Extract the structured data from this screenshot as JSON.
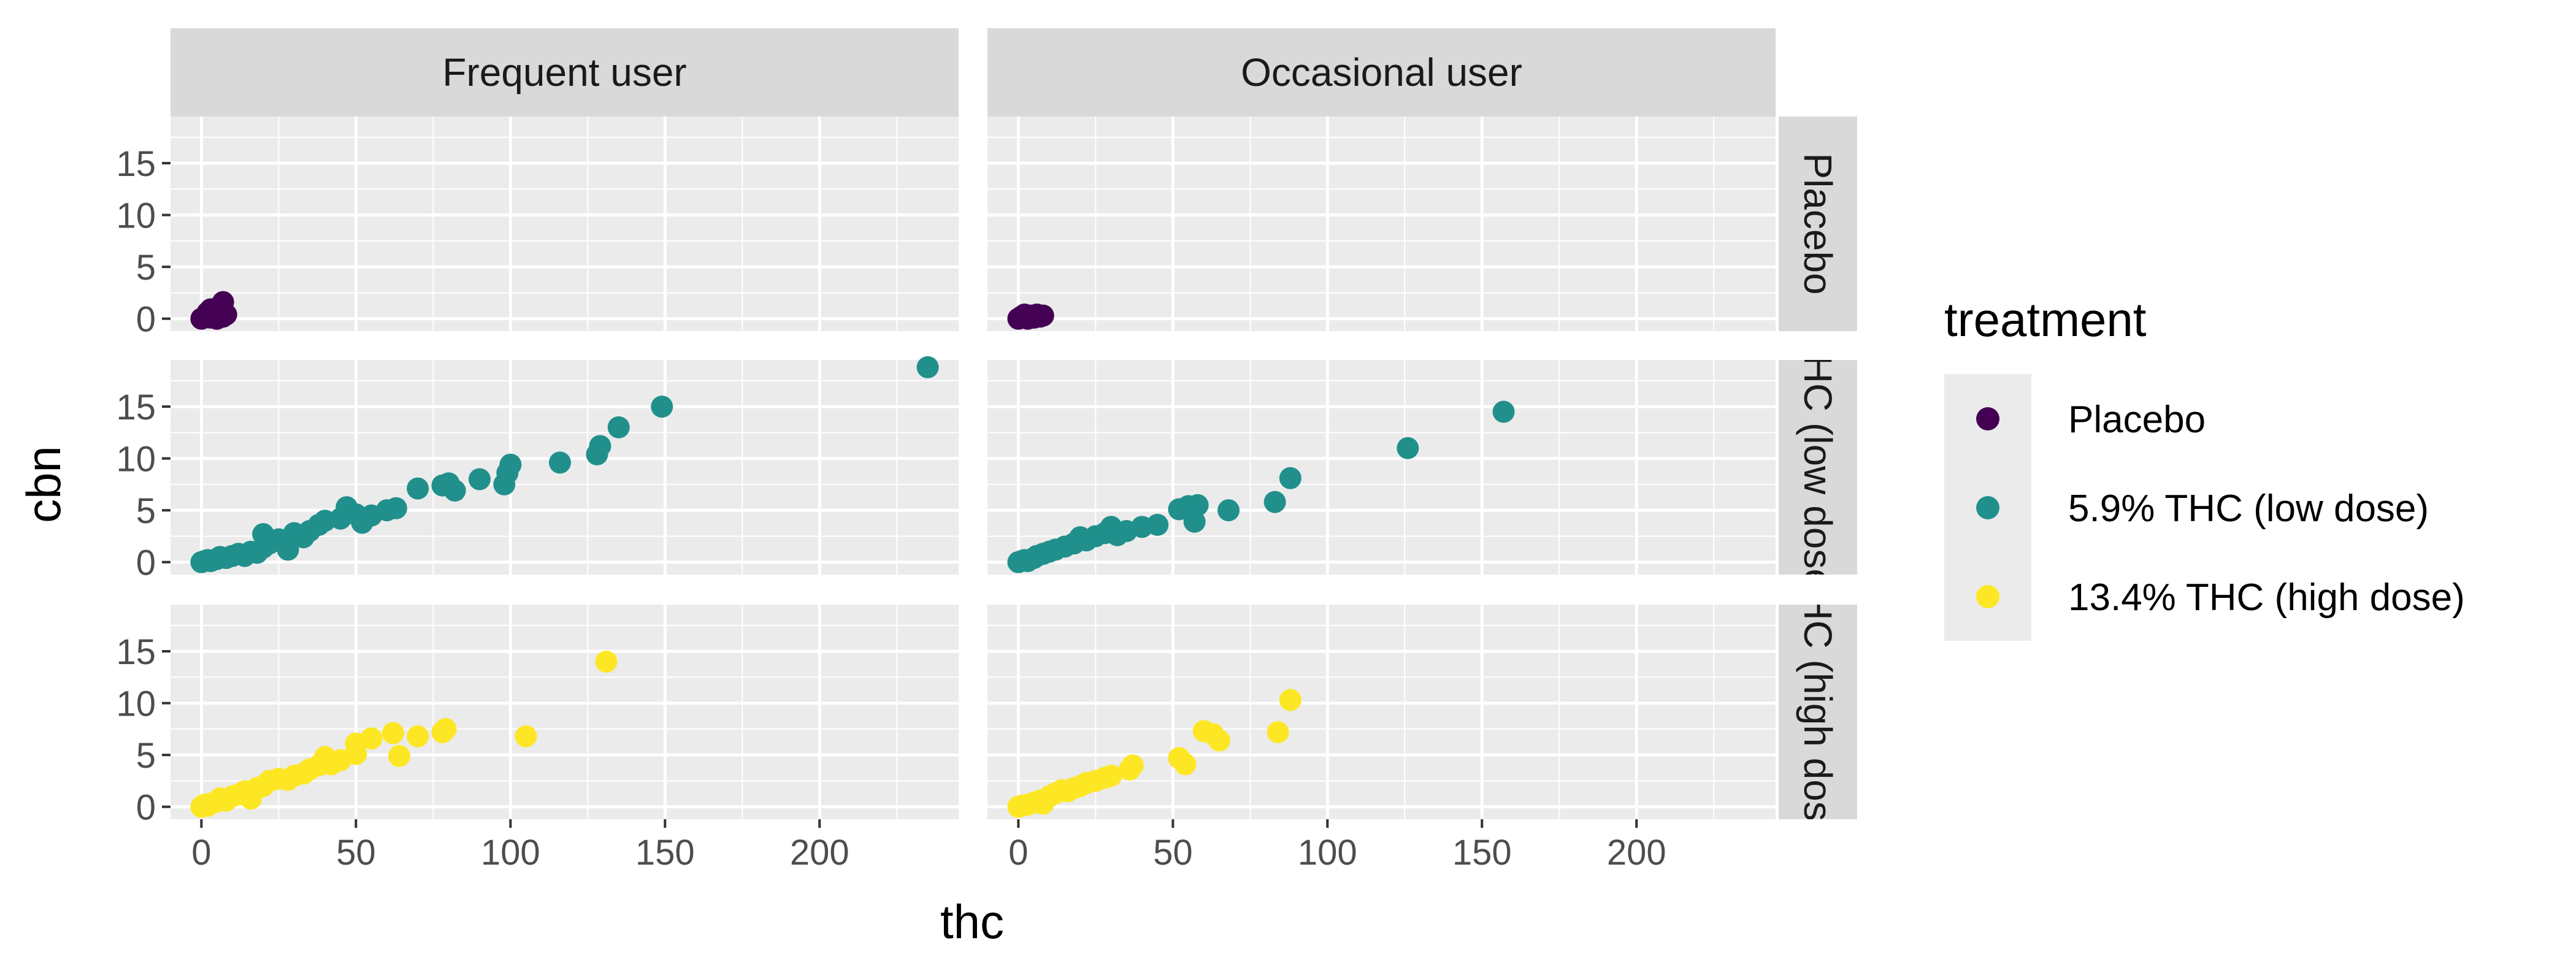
{
  "chart_data": {
    "type": "scatter",
    "xlabel": "thc",
    "ylabel": "cbn",
    "xlim": [
      -10,
      245
    ],
    "ylim": [
      -1.2,
      19.5
    ],
    "x_ticks": [
      0,
      50,
      100,
      150,
      200
    ],
    "y_ticks": [
      0,
      5,
      10,
      15
    ],
    "grid": true,
    "legend": {
      "title": "treatment",
      "position": "right",
      "entries": [
        {
          "label": "Placebo",
          "color": "#440154"
        },
        {
          "label": "5.9% THC (low dose)",
          "color": "#21908C"
        },
        {
          "label": "13.4% THC (high dose)",
          "color": "#FDE725"
        }
      ]
    },
    "col_facets": [
      "Frequent user",
      "Occasional user"
    ],
    "row_facets": [
      "Placebo",
      "THC (low dose)",
      "THC (high dose)"
    ],
    "panels": [
      {
        "col": 0,
        "row": 0,
        "series": 0,
        "points": [
          [
            0,
            0
          ],
          [
            1,
            0.1
          ],
          [
            2,
            0.2
          ],
          [
            3,
            0.1
          ],
          [
            4,
            0.5
          ],
          [
            5,
            0.8
          ],
          [
            6,
            1.2
          ],
          [
            7,
            1.6
          ],
          [
            8,
            0.4
          ],
          [
            3,
            0.9
          ],
          [
            5,
            0
          ],
          [
            7,
            0.2
          ],
          [
            2,
            0.6
          ],
          [
            6,
            0.3
          ]
        ]
      },
      {
        "col": 1,
        "row": 0,
        "series": 0,
        "points": [
          [
            0,
            0
          ],
          [
            1,
            0.2
          ],
          [
            2,
            0.4
          ],
          [
            3,
            0
          ],
          [
            4,
            0.3
          ],
          [
            5,
            0.1
          ],
          [
            6,
            0.4
          ],
          [
            7,
            0.2
          ],
          [
            8,
            0.3
          ],
          [
            2,
            0.1
          ]
        ]
      },
      {
        "col": 0,
        "row": 1,
        "series": 1,
        "points": [
          [
            0,
            0
          ],
          [
            1,
            0.1
          ],
          [
            2,
            0.2
          ],
          [
            3,
            0.1
          ],
          [
            5,
            0.3
          ],
          [
            6,
            0.5
          ],
          [
            8,
            0.4
          ],
          [
            10,
            0.6
          ],
          [
            12,
            0.8
          ],
          [
            14,
            0.6
          ],
          [
            16,
            1.0
          ],
          [
            18,
            0.9
          ],
          [
            20,
            1.4
          ],
          [
            20,
            2.7
          ],
          [
            22,
            1.8
          ],
          [
            25,
            2.2
          ],
          [
            28,
            1.2
          ],
          [
            30,
            2.8
          ],
          [
            33,
            2.4
          ],
          [
            35,
            3.0
          ],
          [
            38,
            3.6
          ],
          [
            40,
            4.0
          ],
          [
            45,
            4.2
          ],
          [
            47,
            5.3
          ],
          [
            50,
            4.6
          ],
          [
            52,
            3.8
          ],
          [
            55,
            4.5
          ],
          [
            60,
            5.0
          ],
          [
            63,
            5.2
          ],
          [
            70,
            7.1
          ],
          [
            78,
            7.4
          ],
          [
            80,
            7.6
          ],
          [
            82,
            6.9
          ],
          [
            90,
            8.0
          ],
          [
            98,
            7.5
          ],
          [
            100,
            9.4
          ],
          [
            99,
            8.6
          ],
          [
            116,
            9.6
          ],
          [
            128,
            10.4
          ],
          [
            129,
            11.2
          ],
          [
            135,
            13.0
          ],
          [
            149,
            15.0
          ],
          [
            235,
            18.8
          ]
        ]
      },
      {
        "col": 1,
        "row": 1,
        "series": 1,
        "points": [
          [
            0,
            0
          ],
          [
            1,
            0.1
          ],
          [
            2,
            0.2
          ],
          [
            3,
            0.1
          ],
          [
            5,
            0.4
          ],
          [
            6,
            0.6
          ],
          [
            8,
            0.8
          ],
          [
            10,
            1.0
          ],
          [
            12,
            1.2
          ],
          [
            15,
            1.5
          ],
          [
            18,
            1.8
          ],
          [
            20,
            2.4
          ],
          [
            22,
            2.1
          ],
          [
            25,
            2.5
          ],
          [
            28,
            2.8
          ],
          [
            30,
            3.4
          ],
          [
            32,
            2.6
          ],
          [
            35,
            3.0
          ],
          [
            40,
            3.4
          ],
          [
            45,
            3.6
          ],
          [
            52,
            5.1
          ],
          [
            55,
            5.4
          ],
          [
            57,
            3.9
          ],
          [
            58,
            5.5
          ],
          [
            68,
            5.0
          ],
          [
            83,
            5.8
          ],
          [
            88,
            8.1
          ],
          [
            126,
            11.0
          ],
          [
            157,
            14.5
          ]
        ]
      },
      {
        "col": 0,
        "row": 2,
        "series": 2,
        "points": [
          [
            0,
            0
          ],
          [
            1,
            0.2
          ],
          [
            2,
            0.1
          ],
          [
            3,
            0.3
          ],
          [
            5,
            0.5
          ],
          [
            6,
            0.8
          ],
          [
            8,
            0.6
          ],
          [
            10,
            1.0
          ],
          [
            12,
            1.2
          ],
          [
            14,
            1.5
          ],
          [
            16,
            0.8
          ],
          [
            18,
            1.8
          ],
          [
            20,
            2.0
          ],
          [
            22,
            2.5
          ],
          [
            25,
            2.7
          ],
          [
            28,
            2.6
          ],
          [
            30,
            3.0
          ],
          [
            33,
            3.2
          ],
          [
            35,
            3.6
          ],
          [
            38,
            4.0
          ],
          [
            40,
            4.8
          ],
          [
            42,
            4.1
          ],
          [
            45,
            4.5
          ],
          [
            50,
            5.1
          ],
          [
            50,
            6.1
          ],
          [
            55,
            6.6
          ],
          [
            62,
            7.1
          ],
          [
            64,
            4.9
          ],
          [
            70,
            6.8
          ],
          [
            78,
            7.2
          ],
          [
            79,
            7.5
          ],
          [
            105,
            6.8
          ],
          [
            131,
            14.0
          ]
        ]
      },
      {
        "col": 1,
        "row": 2,
        "series": 2,
        "points": [
          [
            0,
            0
          ],
          [
            1,
            0.1
          ],
          [
            3,
            0.2
          ],
          [
            5,
            0.4
          ],
          [
            7,
            0.6
          ],
          [
            8,
            0.3
          ],
          [
            10,
            1.0
          ],
          [
            12,
            1.3
          ],
          [
            14,
            1.6
          ],
          [
            16,
            1.5
          ],
          [
            18,
            1.8
          ],
          [
            20,
            2.0
          ],
          [
            22,
            2.3
          ],
          [
            25,
            2.5
          ],
          [
            28,
            2.8
          ],
          [
            30,
            3.0
          ],
          [
            36,
            3.6
          ],
          [
            37,
            4.0
          ],
          [
            52,
            4.7
          ],
          [
            54,
            4.1
          ],
          [
            60,
            7.3
          ],
          [
            63,
            7.0
          ],
          [
            65,
            6.4
          ],
          [
            84,
            7.2
          ],
          [
            88,
            10.3
          ]
        ]
      }
    ]
  }
}
